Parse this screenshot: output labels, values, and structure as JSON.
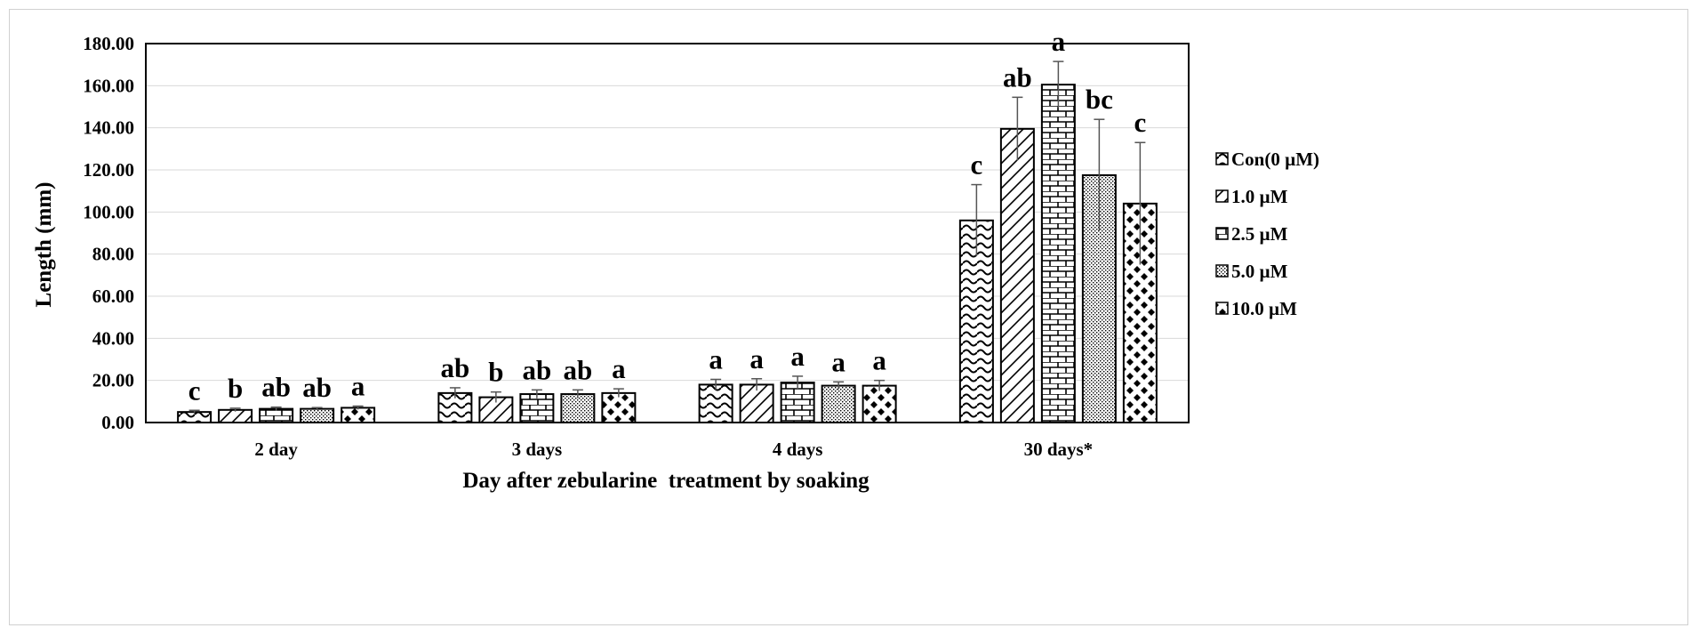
{
  "chart_data": {
    "type": "bar",
    "xlabel": "Day after zebularine  treatment by soaking",
    "ylabel": "Length (mm)",
    "ylim": [
      0,
      180
    ],
    "yticks": [
      "0.00",
      "20.00",
      "40.00",
      "60.00",
      "80.00",
      "100.00",
      "120.00",
      "140.00",
      "160.00",
      "180.00"
    ],
    "grid": "horizontal",
    "legend_position": "right",
    "categories": [
      "2 day",
      "3 days",
      "4 days",
      "30 days*"
    ],
    "series": [
      {
        "name": "Con(0 µM)",
        "pattern": "wave",
        "values": [
          5.0,
          14.0,
          18.0,
          96.0
        ],
        "errors": [
          0.8,
          2.5,
          2.5,
          17.0
        ],
        "sig": [
          "c",
          "ab",
          "a",
          "c"
        ]
      },
      {
        "name": "1.0 µM",
        "pattern": "diagonal",
        "values": [
          6.0,
          12.0,
          18.0,
          139.5
        ],
        "errors": [
          0.8,
          2.5,
          2.8,
          15.0
        ],
        "sig": [
          "b",
          "b",
          "a",
          "ab"
        ]
      },
      {
        "name": "2.5 µM",
        "pattern": "brick",
        "values": [
          6.5,
          13.5,
          19.0,
          160.5
        ],
        "errors": [
          0.8,
          2.0,
          3.0,
          11.0
        ],
        "sig": [
          "ab",
          "ab",
          "a",
          "a"
        ]
      },
      {
        "name": "5.0 µM",
        "pattern": "dots",
        "values": [
          6.5,
          13.5,
          17.5,
          117.5
        ],
        "errors": [
          0.6,
          2.0,
          1.8,
          26.5
        ],
        "sig": [
          "ab",
          "ab",
          "a",
          "bc"
        ]
      },
      {
        "name": "10.0 µM",
        "pattern": "diamond",
        "values": [
          7.0,
          14.0,
          17.5,
          104.0
        ],
        "errors": [
          0.8,
          2.0,
          2.5,
          29.0
        ],
        "sig": [
          "a",
          "a",
          "a",
          "c"
        ]
      }
    ]
  }
}
